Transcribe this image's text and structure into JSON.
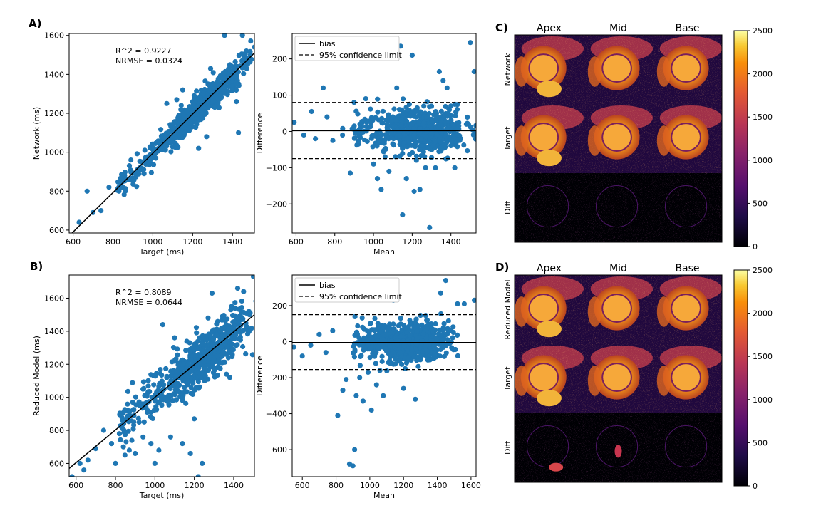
{
  "panel_letters": {
    "a": "A)",
    "b": "B)",
    "c": "C)",
    "d": "D)"
  },
  "colors": {
    "marker": "#1f77b4",
    "line": "#000000"
  },
  "chart_data": [
    {
      "id": "scatter-a",
      "type": "scatter",
      "xlabel": "Target (ms)",
      "ylabel": "Network (ms)",
      "xlim": [
        580,
        1510
      ],
      "ylim": [
        585,
        1610
      ],
      "xticks": [
        600,
        800,
        1000,
        1200,
        1400
      ],
      "yticks": [
        600,
        800,
        1000,
        1200,
        1400,
        1600
      ],
      "annotation": [
        "R^2 = 0.9227",
        "NRMSE = 0.0324"
      ],
      "fit_line": {
        "x": [
          580,
          1510
        ],
        "y": [
          570,
          1510
        ]
      },
      "cloud": {
        "count": 650,
        "noise": 35,
        "seed": 11
      },
      "points": [
        [
          630,
          640
        ],
        [
          670,
          800
        ],
        [
          700,
          690
        ],
        [
          740,
          700
        ],
        [
          780,
          820
        ],
        [
          830,
          800
        ],
        [
          850,
          850
        ],
        [
          890,
          960
        ],
        [
          925,
          900
        ],
        [
          960,
          1010
        ],
        [
          1005,
          1020
        ],
        [
          1070,
          1250
        ],
        [
          1090,
          1050
        ],
        [
          1120,
          1270
        ],
        [
          1150,
          1320
        ],
        [
          1160,
          1100
        ],
        [
          1190,
          1200
        ],
        [
          1230,
          1020
        ],
        [
          1270,
          1080
        ],
        [
          1290,
          1430
        ],
        [
          1300,
          1350
        ],
        [
          1360,
          1600
        ],
        [
          1380,
          1400
        ],
        [
          1400,
          1340
        ],
        [
          1420,
          1260
        ],
        [
          1430,
          1100
        ],
        [
          1450,
          1600
        ],
        [
          1470,
          1520
        ],
        [
          1490,
          1480
        ],
        [
          1510,
          1540
        ]
      ]
    },
    {
      "id": "bland-a",
      "type": "scatter",
      "xlabel": "Mean",
      "ylabel": "Difference",
      "xlim": [
        580,
        1530
      ],
      "ylim": [
        -280,
        270
      ],
      "xticks": [
        600,
        800,
        1000,
        1200,
        1400
      ],
      "yticks": [
        -200,
        -100,
        0,
        100,
        200
      ],
      "ytick_labels": [
        "−200",
        "−100",
        "0",
        "100",
        "200"
      ],
      "bias": 2,
      "limits": [
        80,
        -75
      ],
      "legend": [
        "bias",
        "95% confidence limit"
      ],
      "cloud": {
        "count": 620,
        "noise": 28,
        "seed": 23
      },
      "points": [
        [
          590,
          25
        ],
        [
          640,
          -10
        ],
        [
          680,
          55
        ],
        [
          700,
          -20
        ],
        [
          740,
          120
        ],
        [
          760,
          40
        ],
        [
          790,
          -25
        ],
        [
          840,
          -10
        ],
        [
          880,
          -115
        ],
        [
          900,
          80
        ],
        [
          930,
          20
        ],
        [
          960,
          90
        ],
        [
          1000,
          -90
        ],
        [
          1020,
          -130
        ],
        [
          1040,
          -160
        ],
        [
          1060,
          -70
        ],
        [
          1080,
          -110
        ],
        [
          1100,
          40
        ],
        [
          1120,
          120
        ],
        [
          1140,
          235
        ],
        [
          1150,
          -230
        ],
        [
          1170,
          -130
        ],
        [
          1200,
          210
        ],
        [
          1210,
          -165
        ],
        [
          1240,
          -160
        ],
        [
          1260,
          70
        ],
        [
          1290,
          -265
        ],
        [
          1320,
          -100
        ],
        [
          1340,
          165
        ],
        [
          1360,
          140
        ],
        [
          1380,
          120
        ],
        [
          1400,
          70
        ],
        [
          1420,
          -100
        ],
        [
          1450,
          -20
        ],
        [
          1480,
          20
        ],
        [
          1500,
          245
        ],
        [
          1520,
          165
        ]
      ]
    },
    {
      "id": "scatter-b",
      "type": "scatter",
      "xlabel": "Target (ms)",
      "ylabel": "Reduced Model (ms)",
      "xlim": [
        565,
        1505
      ],
      "ylim": [
        520,
        1740
      ],
      "xticks": [
        600,
        800,
        1000,
        1200,
        1400
      ],
      "yticks": [
        600,
        800,
        1000,
        1200,
        1400,
        1600
      ],
      "annotation": [
        "R^2 = 0.8089",
        "NRMSE = 0.0644"
      ],
      "fit_line": {
        "x": [
          565,
          1505
        ],
        "y": [
          570,
          1500
        ]
      },
      "cloud": {
        "count": 650,
        "noise": 75,
        "seed": 37
      },
      "points": [
        [
          580,
          520
        ],
        [
          620,
          600
        ],
        [
          640,
          560
        ],
        [
          660,
          620
        ],
        [
          700,
          690
        ],
        [
          740,
          800
        ],
        [
          780,
          720
        ],
        [
          800,
          600
        ],
        [
          820,
          780
        ],
        [
          840,
          700
        ],
        [
          870,
          680
        ],
        [
          900,
          660
        ],
        [
          920,
          850
        ],
        [
          940,
          760
        ],
        [
          980,
          720
        ],
        [
          1000,
          600
        ],
        [
          1020,
          680
        ],
        [
          1040,
          1440
        ],
        [
          1080,
          760
        ],
        [
          1100,
          1360
        ],
        [
          1140,
          720
        ],
        [
          1170,
          1200
        ],
        [
          1180,
          660
        ],
        [
          1200,
          870
        ],
        [
          1220,
          520
        ],
        [
          1240,
          600
        ],
        [
          1270,
          1480
        ],
        [
          1290,
          1630
        ],
        [
          1310,
          1290
        ],
        [
          1330,
          1400
        ],
        [
          1380,
          1120
        ],
        [
          1420,
          1660
        ],
        [
          1450,
          1640
        ],
        [
          1480,
          1500
        ],
        [
          1500,
          1730
        ]
      ]
    },
    {
      "id": "bland-b",
      "type": "scatter",
      "xlabel": "Mean",
      "ylabel": "Difference",
      "xlim": [
        540,
        1630
      ],
      "ylim": [
        -750,
        370
      ],
      "xticks": [
        600,
        800,
        1000,
        1200,
        1400,
        1600
      ],
      "yticks": [
        -600,
        -400,
        -200,
        0,
        200
      ],
      "ytick_labels": [
        "−600",
        "−400",
        "−200",
        "0",
        "200"
      ],
      "bias": -5,
      "limits": [
        150,
        -155
      ],
      "legend": [
        "bias",
        "95% confidence limit"
      ],
      "cloud": {
        "count": 620,
        "noise": 55,
        "seed": 53
      },
      "points": [
        [
          550,
          -30
        ],
        [
          600,
          -80
        ],
        [
          650,
          -20
        ],
        [
          700,
          40
        ],
        [
          740,
          -60
        ],
        [
          780,
          60
        ],
        [
          810,
          -410
        ],
        [
          840,
          -270
        ],
        [
          860,
          -210
        ],
        [
          880,
          -680
        ],
        [
          900,
          -690
        ],
        [
          910,
          -600
        ],
        [
          920,
          -300
        ],
        [
          940,
          -200
        ],
        [
          960,
          -330
        ],
        [
          990,
          -170
        ],
        [
          1010,
          -380
        ],
        [
          1040,
          -240
        ],
        [
          1060,
          -160
        ],
        [
          1080,
          -300
        ],
        [
          1120,
          -120
        ],
        [
          1140,
          230
        ],
        [
          1180,
          -60
        ],
        [
          1200,
          -260
        ],
        [
          1230,
          -90
        ],
        [
          1270,
          -320
        ],
        [
          1300,
          -100
        ],
        [
          1340,
          120
        ],
        [
          1380,
          -20
        ],
        [
          1420,
          270
        ],
        [
          1450,
          340
        ],
        [
          1480,
          60
        ],
        [
          1520,
          210
        ],
        [
          1560,
          210
        ],
        [
          1620,
          230
        ]
      ]
    }
  ],
  "image_grids": [
    {
      "id": "grid-c",
      "columns": [
        "Apex",
        "Mid",
        "Base"
      ],
      "rows": [
        "Network",
        "Target",
        "Diff"
      ]
    },
    {
      "id": "grid-d",
      "columns": [
        "Apex",
        "Mid",
        "Base"
      ],
      "rows": [
        "Reduced Model",
        "Target",
        "Diff"
      ]
    }
  ],
  "colorbar": {
    "min": 0,
    "max": 2500,
    "ticks": [
      0,
      500,
      1000,
      1500,
      2000,
      2500
    ],
    "colormap": "inferno"
  }
}
